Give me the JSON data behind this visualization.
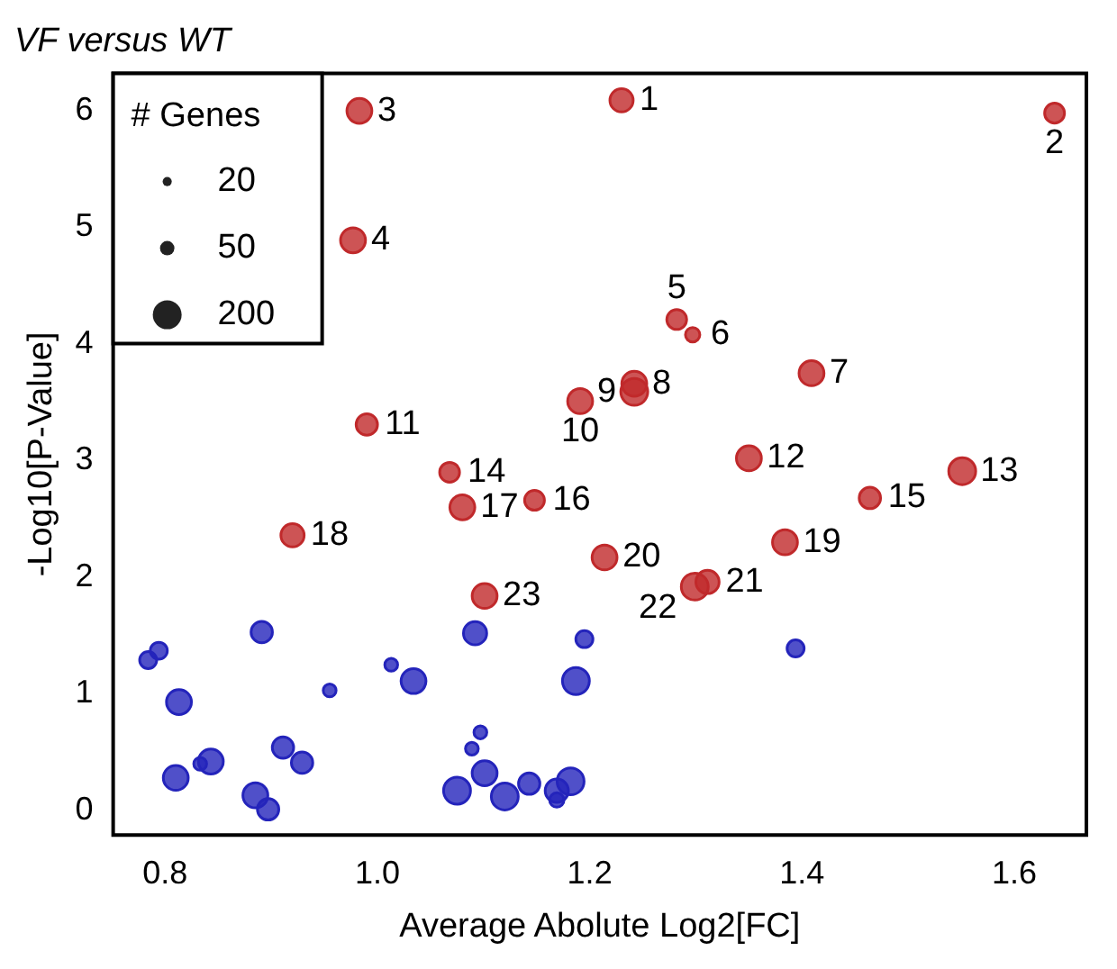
{
  "chart_data": {
    "type": "bubble",
    "title": "VF versus WT",
    "xlabel": "Average Abolute Log2[FC]",
    "ylabel": "-Log10[P-Value]",
    "legend_title": "# Genes",
    "size_legend": [
      20,
      50,
      200
    ],
    "xlim": [
      0.751,
      1.668
    ],
    "ylim": [
      -0.21,
      6.32
    ],
    "xticks": [
      {
        "value": 0.8,
        "label": "0.8"
      },
      {
        "value": 1,
        "label": "1.0"
      },
      {
        "value": 1.2,
        "label": "1.2"
      },
      {
        "value": 1.4,
        "label": "1.4"
      },
      {
        "value": 1.6,
        "label": "1.6"
      }
    ],
    "yticks": [
      0,
      1,
      2,
      3,
      4,
      5,
      6
    ],
    "series": [
      {
        "color": "#c0292b",
        "x": [
          1.23,
          1.638,
          0.983,
          0.977,
          1.282,
          1.297,
          1.409,
          1.242,
          1.242,
          1.191,
          0.99,
          1.35,
          1.551,
          1.068,
          1.464,
          1.148,
          1.08,
          0.92,
          1.384,
          1.214,
          1.311,
          1.299,
          1.101
        ],
        "values": [
          6.09,
          5.98,
          6.0,
          4.89,
          4.21,
          4.08,
          3.75,
          3.66,
          3.59,
          3.51,
          3.31,
          3.02,
          2.91,
          2.9,
          2.68,
          2.66,
          2.6,
          2.36,
          2.3,
          2.17,
          1.96,
          1.92,
          1.84
        ],
        "sizes": [
          130,
          95,
          150,
          150,
          95,
          50,
          150,
          150,
          175,
          150,
          110,
          150,
          175,
          95,
          110,
          95,
          150,
          130,
          150,
          150,
          130,
          175,
          150
        ]
      },
      {
        "color": "#2424bb",
        "x": [
          0.784,
          0.794,
          0.891,
          0.813,
          0.955,
          1.013,
          1.034,
          1.092,
          1.195,
          1.187,
          1.394,
          0.81,
          0.833,
          0.843,
          0.911,
          0.929,
          0.885,
          0.897,
          1.097,
          1.089,
          1.101,
          1.075,
          1.12,
          1.143,
          1.169,
          1.182,
          1.169
        ],
        "values": [
          1.29,
          1.37,
          1.53,
          0.93,
          1.03,
          1.25,
          1.11,
          1.52,
          1.47,
          1.11,
          1.39,
          0.28,
          0.4,
          0.42,
          0.54,
          0.41,
          0.13,
          0.01,
          0.67,
          0.53,
          0.32,
          0.17,
          0.12,
          0.23,
          0.17,
          0.25,
          0.09
        ],
        "sizes": [
          70,
          70,
          110,
          150,
          40,
          40,
          150,
          130,
          70,
          175,
          70,
          150,
          40,
          150,
          110,
          110,
          150,
          110,
          40,
          40,
          150,
          175,
          175,
          110,
          130,
          175,
          50
        ]
      }
    ],
    "annotations": [
      {
        "text": "1",
        "x": 1.23,
        "y": 6.09
      },
      {
        "text": "2",
        "x": 1.638,
        "y": 5.98
      },
      {
        "text": "3",
        "x": 0.983,
        "y": 6.0
      },
      {
        "text": "4",
        "x": 0.977,
        "y": 4.89
      },
      {
        "text": "5",
        "x": 1.282,
        "y": 4.21
      },
      {
        "text": "6",
        "x": 1.297,
        "y": 4.08
      },
      {
        "text": "7",
        "x": 1.409,
        "y": 3.75
      },
      {
        "text": "8",
        "x": 1.242,
        "y": 3.66
      },
      {
        "text": "9",
        "x": 1.242,
        "y": 3.59
      },
      {
        "text": "10",
        "x": 1.191,
        "y": 3.51
      },
      {
        "text": "11",
        "x": 0.99,
        "y": 3.31
      },
      {
        "text": "12",
        "x": 1.35,
        "y": 3.02
      },
      {
        "text": "13",
        "x": 1.551,
        "y": 2.91
      },
      {
        "text": "14",
        "x": 1.068,
        "y": 2.9
      },
      {
        "text": "15",
        "x": 1.464,
        "y": 2.68
      },
      {
        "text": "16",
        "x": 1.148,
        "y": 2.66
      },
      {
        "text": "17",
        "x": 1.08,
        "y": 2.6
      },
      {
        "text": "18",
        "x": 0.92,
        "y": 2.36
      },
      {
        "text": "19",
        "x": 1.384,
        "y": 2.3
      },
      {
        "text": "20",
        "x": 1.214,
        "y": 2.17
      },
      {
        "text": "21",
        "x": 1.311,
        "y": 1.96
      },
      {
        "text": "22",
        "x": 1.299,
        "y": 1.92
      },
      {
        "text": "23",
        "x": 1.101,
        "y": 1.84
      }
    ]
  }
}
